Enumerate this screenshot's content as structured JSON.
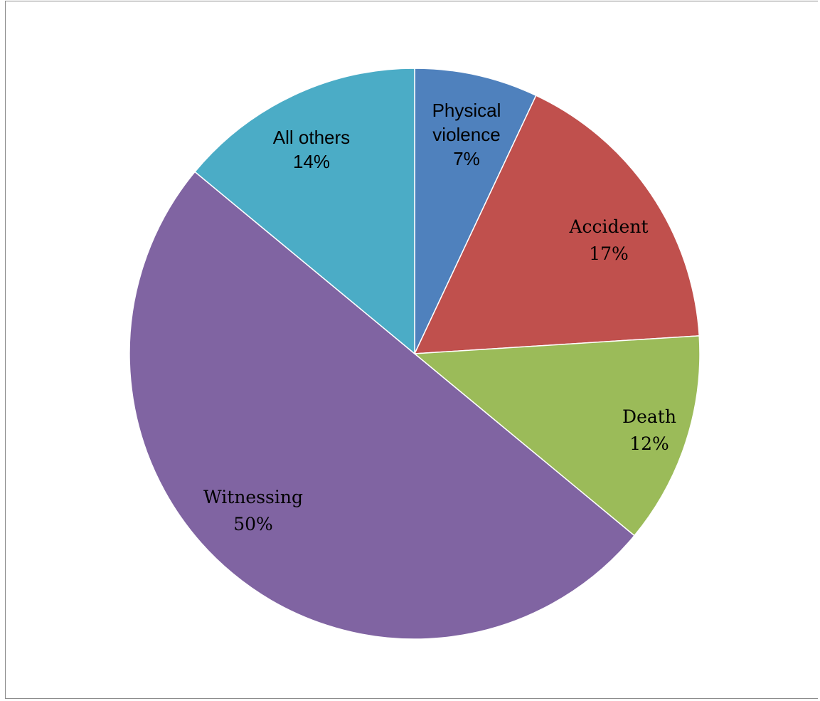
{
  "chart_data": {
    "type": "pie",
    "start_angle_deg": 0,
    "direction": "clockwise",
    "slices": [
      {
        "label": "Physical violence",
        "label_lines": [
          "Physical",
          "violence"
        ],
        "percent_label": "7%",
        "value": 7,
        "color": "#4F81BD",
        "label_style": "sans"
      },
      {
        "label": "Accident",
        "label_lines": [
          "Accident"
        ],
        "percent_label": "17%",
        "value": 17,
        "color": "#C0504D",
        "label_style": "serif"
      },
      {
        "label": "Death",
        "label_lines": [
          "Death"
        ],
        "percent_label": "12%",
        "value": 12,
        "color": "#9BBB59",
        "label_style": "serif"
      },
      {
        "label": "Witnessing",
        "label_lines": [
          "Witnessing"
        ],
        "percent_label": "50%",
        "value": 50,
        "color": "#8064A2",
        "label_style": "serif"
      },
      {
        "label": "All others",
        "label_lines": [
          "All others"
        ],
        "percent_label": "14%",
        "value": 14,
        "color": "#4BACC6",
        "label_style": "sans"
      }
    ]
  }
}
